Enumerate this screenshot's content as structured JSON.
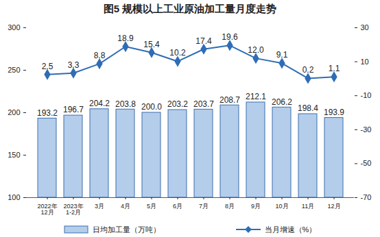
{
  "chart_data": {
    "type": "bar",
    "title": "图5 规模以上工业原油加工量月度走势",
    "categories": [
      "2022年\n12月",
      "2023年\n1-2月",
      "3月",
      "4月",
      "5月",
      "6月",
      "7月",
      "8月",
      "9月",
      "10月",
      "11月",
      "12月"
    ],
    "series": [
      {
        "name": "日均加工量（万吨）",
        "type": "bar",
        "color": "#b4cdea",
        "values": [
          193.2,
          196.7,
          204.2,
          203.8,
          200.0,
          203.2,
          203.7,
          208.7,
          212.1,
          206.2,
          198.4,
          193.9
        ],
        "value_labels": [
          "193.2",
          "196.7",
          "204.2",
          "203.8",
          "200.0",
          "203.2",
          "203.7",
          "208.7",
          "212.1",
          "206.2",
          "198.4",
          "193.9"
        ]
      },
      {
        "name": "当月增速（%）",
        "type": "line",
        "axis": "y2",
        "color": "#2f6db5",
        "marker": "diamond",
        "values": [
          2.5,
          3.3,
          8.8,
          18.9,
          15.4,
          10.2,
          17.4,
          19.6,
          12.0,
          9.1,
          0.2,
          1.1
        ],
        "value_labels": [
          "2.5",
          "3.3",
          "8.8",
          "18.9",
          "15.4",
          "10.2",
          "17.4",
          "19.6",
          "12.0",
          "9.1",
          "0.2",
          "1.1"
        ]
      }
    ],
    "ylim": [
      100,
      300
    ],
    "yticks": [
      100,
      150,
      200,
      250,
      300
    ],
    "y2lim": [
      -70,
      30
    ],
    "y2ticks": [
      -70,
      -50,
      -30,
      -10,
      10,
      30
    ],
    "data_labels": true,
    "legend": "bottom",
    "grid": false
  }
}
